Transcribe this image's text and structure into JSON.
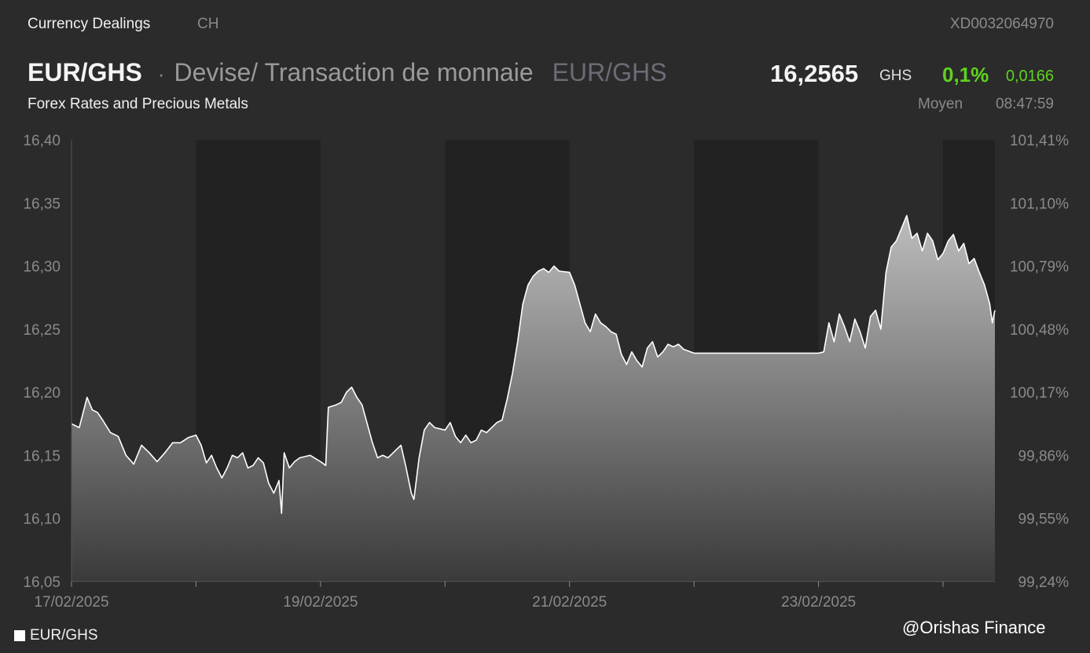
{
  "header": {
    "category": "Currency Dealings",
    "region": "CH",
    "isin": "XD0032064970",
    "pair": "EUR/GHS",
    "description": "Devise/ Transaction de monnaie",
    "pair_secondary": "EUR/GHS",
    "price": "16,2565",
    "currency": "GHS",
    "change_pct": "0,1%",
    "change_abs": "0,0166",
    "subtitle": "Forex Rates and Precious Metals",
    "price_type": "Moyen",
    "time": "08:47:59"
  },
  "legend": {
    "label": "EUR/GHS"
  },
  "watermark": "@Orishas Finance",
  "colors": {
    "background": "#2b2b2b",
    "session_shade": "#222222",
    "line": "#ffffff",
    "positive": "#5fd21e"
  },
  "chart_data": {
    "type": "area",
    "title": "",
    "xlabel": "",
    "ylabel": "",
    "ylim": [
      16.05,
      16.4
    ],
    "yticks": [
      "16,40",
      "16,35",
      "16,30",
      "16,25",
      "16,20",
      "16,15",
      "16,10",
      "16,05"
    ],
    "y2ticks": [
      "101,41%",
      "101,10%",
      "100,79%",
      "100,48%",
      "100,17%",
      "99,86%",
      "99,55%",
      "99,24%"
    ],
    "xlim": [
      "2025-02-17T00:00",
      "2025-02-24T10:00"
    ],
    "xtick_labels": [
      {
        "date": "2025-02-17",
        "label": "17/02/2025"
      },
      {
        "date": "2025-02-19",
        "label": "19/02/2025"
      },
      {
        "date": "2025-02-21",
        "label": "21/02/2025"
      },
      {
        "date": "2025-02-23",
        "label": "23/02/2025"
      }
    ],
    "xticks_minor": [
      "2025-02-18",
      "2025-02-20",
      "2025-02-22",
      "2025-02-24"
    ],
    "shaded_sessions": [
      [
        "2025-02-18T00:00",
        "2025-02-19T00:00"
      ],
      [
        "2025-02-20T00:00",
        "2025-02-21T00:00"
      ],
      [
        "2025-02-22T00:00",
        "2025-02-23T00:00"
      ],
      [
        "2025-02-24T00:00",
        "2025-02-24T10:00"
      ]
    ],
    "series": [
      {
        "name": "EUR/GHS",
        "points": [
          [
            "2025-02-17T00:00",
            16.175
          ],
          [
            "2025-02-17T01:30",
            16.172
          ],
          [
            "2025-02-17T03:00",
            16.196
          ],
          [
            "2025-02-17T04:00",
            16.186
          ],
          [
            "2025-02-17T05:00",
            16.184
          ],
          [
            "2025-02-17T06:00",
            16.178
          ],
          [
            "2025-02-17T07:30",
            16.168
          ],
          [
            "2025-02-17T09:00",
            16.165
          ],
          [
            "2025-02-17T10:30",
            16.15
          ],
          [
            "2025-02-17T12:00",
            16.143
          ],
          [
            "2025-02-17T13:30",
            16.158
          ],
          [
            "2025-02-17T15:00",
            16.152
          ],
          [
            "2025-02-17T16:30",
            16.145
          ],
          [
            "2025-02-17T18:00",
            16.152
          ],
          [
            "2025-02-17T19:30",
            16.16
          ],
          [
            "2025-02-17T21:00",
            16.16
          ],
          [
            "2025-02-17T22:30",
            16.164
          ],
          [
            "2025-02-18T00:00",
            16.166
          ],
          [
            "2025-02-18T01:00",
            16.158
          ],
          [
            "2025-02-18T02:00",
            16.144
          ],
          [
            "2025-02-18T03:00",
            16.15
          ],
          [
            "2025-02-18T04:00",
            16.14
          ],
          [
            "2025-02-18T05:00",
            16.132
          ],
          [
            "2025-02-18T06:00",
            16.14
          ],
          [
            "2025-02-18T07:00",
            16.15
          ],
          [
            "2025-02-18T08:00",
            16.148
          ],
          [
            "2025-02-18T09:00",
            16.152
          ],
          [
            "2025-02-18T10:00",
            16.14
          ],
          [
            "2025-02-18T11:00",
            16.142
          ],
          [
            "2025-02-18T12:00",
            16.148
          ],
          [
            "2025-02-18T13:00",
            16.144
          ],
          [
            "2025-02-18T14:00",
            16.128
          ],
          [
            "2025-02-18T15:00",
            16.12
          ],
          [
            "2025-02-18T16:00",
            16.13
          ],
          [
            "2025-02-18T16:30",
            16.104
          ],
          [
            "2025-02-18T17:00",
            16.152
          ],
          [
            "2025-02-18T18:00",
            16.14
          ],
          [
            "2025-02-18T19:00",
            16.145
          ],
          [
            "2025-02-18T20:00",
            16.148
          ],
          [
            "2025-02-18T22:00",
            16.15
          ],
          [
            "2025-02-19T00:00",
            16.145
          ],
          [
            "2025-02-19T01:00",
            16.142
          ],
          [
            "2025-02-19T01:30",
            16.188
          ],
          [
            "2025-02-19T03:00",
            16.19
          ],
          [
            "2025-02-19T04:00",
            16.192
          ],
          [
            "2025-02-19T05:00",
            16.2
          ],
          [
            "2025-02-19T06:00",
            16.204
          ],
          [
            "2025-02-19T07:00",
            16.196
          ],
          [
            "2025-02-19T08:00",
            16.19
          ],
          [
            "2025-02-19T09:00",
            16.175
          ],
          [
            "2025-02-19T10:00",
            16.16
          ],
          [
            "2025-02-19T11:00",
            16.148
          ],
          [
            "2025-02-19T12:00",
            16.15
          ],
          [
            "2025-02-19T13:00",
            16.148
          ],
          [
            "2025-02-19T14:00",
            16.152
          ],
          [
            "2025-02-19T15:30",
            16.158
          ],
          [
            "2025-02-19T16:30",
            16.14
          ],
          [
            "2025-02-19T17:30",
            16.12
          ],
          [
            "2025-02-19T18:00",
            16.115
          ],
          [
            "2025-02-19T19:00",
            16.148
          ],
          [
            "2025-02-19T20:00",
            16.17
          ],
          [
            "2025-02-19T21:00",
            16.176
          ],
          [
            "2025-02-19T22:00",
            16.172
          ],
          [
            "2025-02-20T00:00",
            16.17
          ],
          [
            "2025-02-20T01:00",
            16.176
          ],
          [
            "2025-02-20T02:00",
            16.165
          ],
          [
            "2025-02-20T03:00",
            16.16
          ],
          [
            "2025-02-20T04:00",
            16.166
          ],
          [
            "2025-02-20T05:00",
            16.16
          ],
          [
            "2025-02-20T06:00",
            16.162
          ],
          [
            "2025-02-20T07:00",
            16.17
          ],
          [
            "2025-02-20T08:00",
            16.168
          ],
          [
            "2025-02-20T09:00",
            16.172
          ],
          [
            "2025-02-20T10:00",
            16.176
          ],
          [
            "2025-02-20T11:00",
            16.178
          ],
          [
            "2025-02-20T12:00",
            16.195
          ],
          [
            "2025-02-20T13:00",
            16.215
          ],
          [
            "2025-02-20T14:00",
            16.24
          ],
          [
            "2025-02-20T15:00",
            16.27
          ],
          [
            "2025-02-20T16:00",
            16.285
          ],
          [
            "2025-02-20T17:00",
            16.292
          ],
          [
            "2025-02-20T18:00",
            16.296
          ],
          [
            "2025-02-20T19:00",
            16.298
          ],
          [
            "2025-02-20T20:00",
            16.295
          ],
          [
            "2025-02-20T21:00",
            16.3
          ],
          [
            "2025-02-20T22:00",
            16.296
          ],
          [
            "2025-02-21T00:00",
            16.295
          ],
          [
            "2025-02-21T01:00",
            16.285
          ],
          [
            "2025-02-21T02:00",
            16.27
          ],
          [
            "2025-02-21T03:00",
            16.255
          ],
          [
            "2025-02-21T04:00",
            16.248
          ],
          [
            "2025-02-21T05:00",
            16.262
          ],
          [
            "2025-02-21T06:00",
            16.255
          ],
          [
            "2025-02-21T07:00",
            16.252
          ],
          [
            "2025-02-21T08:00",
            16.248
          ],
          [
            "2025-02-21T09:00",
            16.246
          ],
          [
            "2025-02-21T10:00",
            16.23
          ],
          [
            "2025-02-21T11:00",
            16.222
          ],
          [
            "2025-02-21T12:00",
            16.232
          ],
          [
            "2025-02-21T13:00",
            16.225
          ],
          [
            "2025-02-21T14:00",
            16.22
          ],
          [
            "2025-02-21T15:00",
            16.235
          ],
          [
            "2025-02-21T16:00",
            16.24
          ],
          [
            "2025-02-21T17:00",
            16.228
          ],
          [
            "2025-02-21T18:00",
            16.232
          ],
          [
            "2025-02-21T19:00",
            16.238
          ],
          [
            "2025-02-21T20:00",
            16.236
          ],
          [
            "2025-02-21T21:00",
            16.238
          ],
          [
            "2025-02-21T22:00",
            16.234
          ],
          [
            "2025-02-22T00:00",
            16.231
          ],
          [
            "2025-02-23T00:00",
            16.231
          ],
          [
            "2025-02-23T01:00",
            16.232
          ],
          [
            "2025-02-23T02:00",
            16.255
          ],
          [
            "2025-02-23T03:00",
            16.24
          ],
          [
            "2025-02-23T04:00",
            16.262
          ],
          [
            "2025-02-23T05:00",
            16.252
          ],
          [
            "2025-02-23T06:00",
            16.24
          ],
          [
            "2025-02-23T07:00",
            16.258
          ],
          [
            "2025-02-23T08:00",
            16.248
          ],
          [
            "2025-02-23T09:00",
            16.235
          ],
          [
            "2025-02-23T10:00",
            16.26
          ],
          [
            "2025-02-23T11:00",
            16.265
          ],
          [
            "2025-02-23T12:00",
            16.25
          ],
          [
            "2025-02-23T13:00",
            16.295
          ],
          [
            "2025-02-23T14:00",
            16.315
          ],
          [
            "2025-02-23T15:00",
            16.32
          ],
          [
            "2025-02-23T16:00",
            16.33
          ],
          [
            "2025-02-23T17:00",
            16.34
          ],
          [
            "2025-02-23T18:00",
            16.322
          ],
          [
            "2025-02-23T19:00",
            16.326
          ],
          [
            "2025-02-23T20:00",
            16.312
          ],
          [
            "2025-02-23T21:00",
            16.326
          ],
          [
            "2025-02-23T22:00",
            16.32
          ],
          [
            "2025-02-23T23:00",
            16.305
          ],
          [
            "2025-02-24T00:00",
            16.31
          ],
          [
            "2025-02-24T01:00",
            16.32
          ],
          [
            "2025-02-24T02:00",
            16.325
          ],
          [
            "2025-02-24T03:00",
            16.312
          ],
          [
            "2025-02-24T04:00",
            16.318
          ],
          [
            "2025-02-24T05:00",
            16.302
          ],
          [
            "2025-02-24T06:00",
            16.306
          ],
          [
            "2025-02-24T07:00",
            16.295
          ],
          [
            "2025-02-24T08:00",
            16.285
          ],
          [
            "2025-02-24T09:00",
            16.27
          ],
          [
            "2025-02-24T09:30",
            16.255
          ],
          [
            "2025-02-24T10:00",
            16.265
          ]
        ]
      }
    ]
  }
}
